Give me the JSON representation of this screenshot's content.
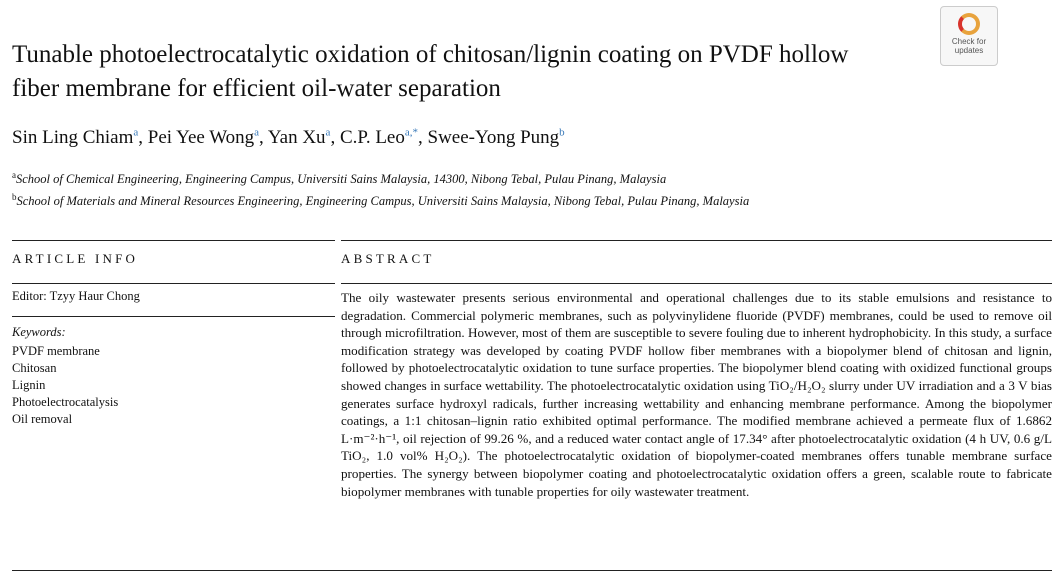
{
  "header": {
    "title": "Tunable photoelectrocatalytic oxidation of chitosan/lignin coating on PVDF hollow fiber membrane for efficient oil-water separation",
    "badge": "Check for updates",
    "authors": [
      {
        "name": "Sin Ling Chiam",
        "affil": "a"
      },
      {
        "name": "Pei Yee Wong",
        "affil": "a"
      },
      {
        "name": "Yan Xu",
        "affil": "a"
      },
      {
        "name": "C.P. Leo",
        "affil": "a,*"
      },
      {
        "name": "Swee-Yong Pung",
        "affil": "b"
      }
    ],
    "affiliations": [
      {
        "mark": "a",
        "text": "School of Chemical Engineering, Engineering Campus, Universiti Sains Malaysia, 14300, Nibong Tebal, Pulau Pinang, Malaysia"
      },
      {
        "mark": "b",
        "text": "School of Materials and Mineral Resources Engineering, Engineering Campus, Universiti Sains Malaysia, Nibong Tebal, Pulau Pinang, Malaysia"
      }
    ]
  },
  "article_info": {
    "heading": "ARTICLE INFO",
    "editor": "Editor: Tzyy Haur Chong",
    "keywords_label": "Keywords:",
    "keywords": [
      "PVDF membrane",
      "Chitosan",
      "Lignin",
      "Photoelectrocatalysis",
      "Oil removal"
    ]
  },
  "abstract": {
    "heading": "ABSTRACT",
    "text": "The oily wastewater presents serious environmental and operational challenges due to its stable emulsions and resistance to degradation. Commercial polymeric membranes, such as polyvinylidene fluoride (PVDF) membranes, could be used to remove oil through microfiltration. However, most of them are susceptible to severe fouling due to inherent hydrophobicity. In this study, a surface modification strategy was developed by coating PVDF hollow fiber membranes with a biopolymer blend of chitosan and lignin, followed by photoelectrocatalytic oxidation to tune surface properties. The biopolymer blend coating with oxidized functional groups showed changes in surface wettability. The photoelectrocatalytic oxidation using TiO₂/H₂O₂ slurry under UV irradiation and a 3 V bias generates surface hydroxyl radicals, further increasing wettability and enhancing membrane performance. Among the biopolymer coatings, a 1:1 chitosan–lignin ratio exhibited optimal performance. The modified membrane achieved a permeate flux of 1.6862 L·m⁻²·h⁻¹, oil rejection of 99.26 %, and a reduced water contact angle of 17.34° after photoelectrocatalytic oxidation (4 h UV, 0.6 g/L TiO₂, 1.0 vol% H₂O₂). The photoelectrocatalytic oxidation of biopolymer-coated membranes offers tunable membrane surface properties. The synergy between biopolymer coating and photoelectrocatalytic oxidation offers a green, scalable route to fabricate biopolymer membranes with tunable properties for oily wastewater treatment."
  }
}
